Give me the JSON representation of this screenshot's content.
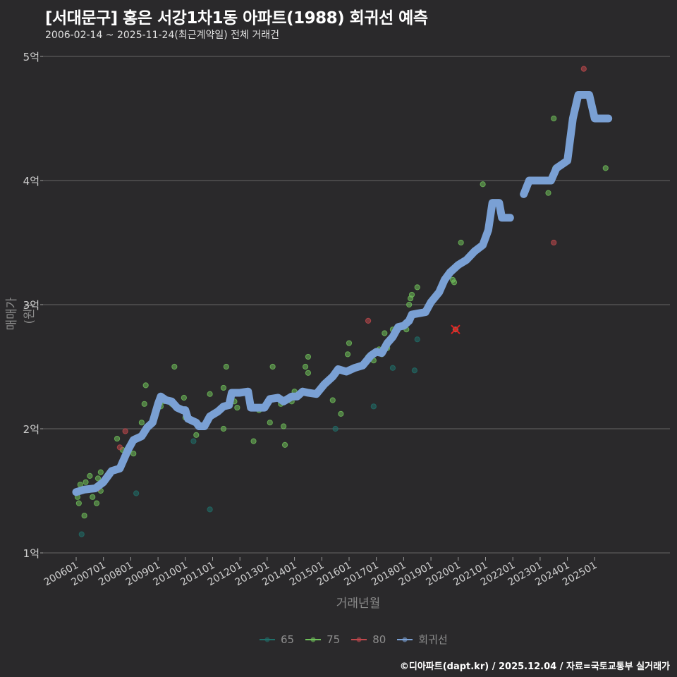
{
  "header": {
    "title": "[서대문구] 홍은 서강1차1동 아파트(1988) 회귀선 예측",
    "subtitle": "2006-02-14 ~ 2025-11-24(최근계약일) 전체 거래건"
  },
  "footer": {
    "credit": "©디아파트(dapt.kr) / 2025.12.04 / 자료=국토교통부 실거래가"
  },
  "colors": {
    "background": "#2a292b",
    "grid": "#5a5a5a",
    "s65": "#1f6f6a",
    "s75": "#6fbf5a",
    "s80": "#c0484c",
    "regression": "#7aa0d4"
  },
  "chart_data": {
    "type": "scatter",
    "title": "[서대문구] 홍은 서강1차1동 아파트(1988) 회귀선 예측",
    "subtitle": "2006-02-14 ~ 2025-11-24(최근계약일) 전체 거래건",
    "xlabel": "거래년월",
    "ylabel": "매매가(원)",
    "ylim": [
      1,
      5
    ],
    "yticks": [
      "1억",
      "2억",
      "3억",
      "4억",
      "5억"
    ],
    "yvalues": [
      1,
      2,
      3,
      4,
      5
    ],
    "xticks": [
      "200601",
      "200701",
      "200801",
      "200901",
      "201001",
      "201101",
      "201201",
      "201301",
      "201401",
      "201501",
      "201601",
      "201701",
      "201801",
      "201901",
      "202001",
      "202101",
      "202201",
      "202301",
      "202401",
      "202501"
    ],
    "legend": [
      "65",
      "75",
      "80",
      "회귀선"
    ],
    "legend_position": "bottom",
    "grid": true,
    "series": [
      {
        "name": "65",
        "points": [
          [
            2006.2,
            1.15
          ],
          [
            2008.2,
            1.48
          ],
          [
            2010.3,
            1.9
          ],
          [
            2010.9,
            1.35
          ],
          [
            2015.5,
            2.0
          ],
          [
            2016.9,
            2.18
          ],
          [
            2017.6,
            2.49
          ],
          [
            2018.4,
            2.47
          ],
          [
            2018.5,
            2.72
          ]
        ]
      },
      {
        "name": "75",
        "points": [
          [
            2006.05,
            1.45
          ],
          [
            2006.1,
            1.4
          ],
          [
            2006.15,
            1.55
          ],
          [
            2006.3,
            1.3
          ],
          [
            2006.35,
            1.57
          ],
          [
            2006.5,
            1.62
          ],
          [
            2006.6,
            1.45
          ],
          [
            2006.75,
            1.4
          ],
          [
            2006.8,
            1.6
          ],
          [
            2006.9,
            1.5
          ],
          [
            2006.9,
            1.65
          ],
          [
            2007.5,
            1.92
          ],
          [
            2007.7,
            1.83
          ],
          [
            2008.1,
            1.8
          ],
          [
            2008.4,
            2.05
          ],
          [
            2008.5,
            2.2
          ],
          [
            2008.55,
            2.35
          ],
          [
            2009.1,
            2.18
          ],
          [
            2009.2,
            2.22
          ],
          [
            2009.5,
            2.2
          ],
          [
            2009.6,
            2.5
          ],
          [
            2009.95,
            2.25
          ],
          [
            2010.0,
            2.09
          ],
          [
            2010.4,
            1.95
          ],
          [
            2010.9,
            2.28
          ],
          [
            2011.4,
            2.0
          ],
          [
            2011.4,
            2.33
          ],
          [
            2011.5,
            2.5
          ],
          [
            2011.8,
            2.22
          ],
          [
            2011.9,
            2.17
          ],
          [
            2012.5,
            1.9
          ],
          [
            2012.7,
            2.15
          ],
          [
            2013.1,
            2.05
          ],
          [
            2013.2,
            2.5
          ],
          [
            2013.5,
            2.2
          ],
          [
            2013.6,
            2.02
          ],
          [
            2013.65,
            1.87
          ],
          [
            2013.9,
            2.22
          ],
          [
            2014.0,
            2.3
          ],
          [
            2014.4,
            2.5
          ],
          [
            2014.5,
            2.58
          ],
          [
            2014.5,
            2.45
          ],
          [
            2015.4,
            2.23
          ],
          [
            2015.7,
            2.12
          ],
          [
            2015.95,
            2.6
          ],
          [
            2016.0,
            2.69
          ],
          [
            2016.7,
            2.58
          ],
          [
            2016.9,
            2.55
          ],
          [
            2017.1,
            2.64
          ],
          [
            2017.2,
            2.6
          ],
          [
            2017.3,
            2.77
          ],
          [
            2017.4,
            2.65
          ],
          [
            2017.6,
            2.8
          ],
          [
            2018.1,
            2.8
          ],
          [
            2018.2,
            3.0
          ],
          [
            2018.25,
            3.05
          ],
          [
            2018.3,
            3.08
          ],
          [
            2018.5,
            3.14
          ],
          [
            2019.8,
            3.2
          ],
          [
            2019.85,
            3.18
          ],
          [
            2019.9,
            2.8
          ],
          [
            2020.1,
            3.5
          ],
          [
            2020.9,
            3.97
          ],
          [
            2023.3,
            3.9
          ],
          [
            2023.5,
            4.5
          ],
          [
            2023.55,
            4.1
          ],
          [
            2025.4,
            4.1
          ]
        ]
      },
      {
        "name": "80",
        "points": [
          [
            2006.8,
            1.52
          ],
          [
            2007.6,
            1.85
          ],
          [
            2007.8,
            1.98
          ],
          [
            2016.7,
            2.87
          ],
          [
            2019.3,
            3.1
          ],
          [
            2019.9,
            2.8
          ],
          [
            2023.5,
            3.5
          ],
          [
            2024.6,
            4.9
          ]
        ]
      },
      {
        "name": "회귀선",
        "points": [
          [
            2006.0,
            1.49
          ],
          [
            2006.3,
            1.51
          ],
          [
            2006.7,
            1.52
          ],
          [
            2007.0,
            1.57
          ],
          [
            2007.3,
            1.66
          ],
          [
            2007.6,
            1.68
          ],
          [
            2007.9,
            1.83
          ],
          [
            2008.1,
            1.91
          ],
          [
            2008.4,
            1.94
          ],
          [
            2008.6,
            2.01
          ],
          [
            2008.8,
            2.05
          ],
          [
            2009.0,
            2.2
          ],
          [
            2009.1,
            2.26
          ],
          [
            2009.3,
            2.23
          ],
          [
            2009.5,
            2.22
          ],
          [
            2009.7,
            2.17
          ],
          [
            2009.9,
            2.15
          ],
          [
            2010.0,
            2.15
          ],
          [
            2010.1,
            2.08
          ],
          [
            2010.4,
            2.05
          ],
          [
            2010.5,
            2.02
          ],
          [
            2010.7,
            2.02
          ],
          [
            2010.9,
            2.1
          ],
          [
            2011.2,
            2.14
          ],
          [
            2011.4,
            2.18
          ],
          [
            2011.6,
            2.19
          ],
          [
            2011.7,
            2.29
          ],
          [
            2012.0,
            2.29
          ],
          [
            2012.3,
            2.3
          ],
          [
            2012.4,
            2.17
          ],
          [
            2012.9,
            2.17
          ],
          [
            2013.1,
            2.24
          ],
          [
            2013.4,
            2.25
          ],
          [
            2013.6,
            2.22
          ],
          [
            2013.9,
            2.26
          ],
          [
            2014.1,
            2.26
          ],
          [
            2014.3,
            2.3
          ],
          [
            2014.5,
            2.29
          ],
          [
            2014.8,
            2.28
          ],
          [
            2015.1,
            2.36
          ],
          [
            2015.4,
            2.42
          ],
          [
            2015.6,
            2.48
          ],
          [
            2015.9,
            2.46
          ],
          [
            2016.2,
            2.49
          ],
          [
            2016.5,
            2.51
          ],
          [
            2016.8,
            2.59
          ],
          [
            2017.0,
            2.62
          ],
          [
            2017.2,
            2.61
          ],
          [
            2017.4,
            2.69
          ],
          [
            2017.6,
            2.74
          ],
          [
            2017.8,
            2.82
          ],
          [
            2018.0,
            2.83
          ],
          [
            2018.2,
            2.87
          ],
          [
            2018.3,
            2.92
          ],
          [
            2018.8,
            2.94
          ],
          [
            2019.0,
            3.02
          ],
          [
            2019.3,
            3.1
          ],
          [
            2019.5,
            3.2
          ],
          [
            2019.7,
            3.26
          ],
          [
            2020.0,
            3.32
          ],
          [
            2020.3,
            3.36
          ],
          [
            2020.6,
            3.43
          ],
          [
            2020.9,
            3.48
          ],
          [
            2021.1,
            3.6
          ],
          [
            2021.25,
            3.82
          ],
          [
            2021.5,
            3.82
          ],
          [
            2021.6,
            3.7
          ],
          [
            2021.9,
            3.7
          ],
          [
            null,
            null
          ],
          [
            2022.4,
            3.89
          ],
          [
            2022.6,
            4.0
          ],
          [
            2023.4,
            4.0
          ],
          [
            2023.6,
            4.1
          ],
          [
            2024.0,
            4.16
          ],
          [
            2024.2,
            4.5
          ],
          [
            2024.4,
            4.69
          ],
          [
            2024.8,
            4.69
          ],
          [
            2025.0,
            4.5
          ],
          [
            2025.5,
            4.5
          ]
        ]
      }
    ]
  },
  "legend": {
    "items": [
      {
        "label": "65",
        "color": "#1f6f6a"
      },
      {
        "label": "75",
        "color": "#6fbf5a"
      },
      {
        "label": "80",
        "color": "#c0484c"
      },
      {
        "label": "회귀선",
        "color": "#7aa0d4"
      }
    ]
  },
  "annotations": {
    "marked_outlier": "x-mark at 2019.9, 2.8억"
  }
}
